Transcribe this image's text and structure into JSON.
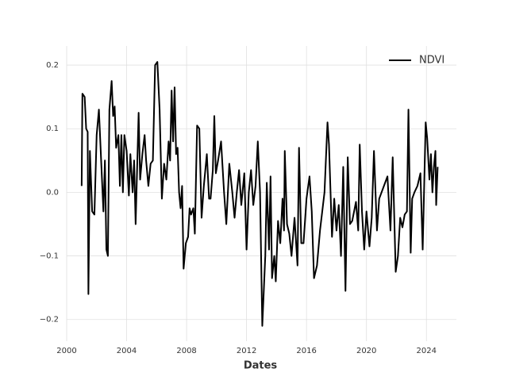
{
  "chart_data": {
    "type": "line",
    "x_label": "Dates",
    "xlim": [
      2000,
      2026
    ],
    "xticks": [
      2000,
      2004,
      2008,
      2012,
      2016,
      2020,
      2024
    ],
    "ylim": [
      -0.234,
      0.23
    ],
    "yticks": [
      {
        "value": -0.2,
        "label": "−0.2"
      },
      {
        "value": -0.1,
        "label": "−0.1"
      },
      {
        "value": 0,
        "label": "0.0"
      },
      0.1,
      0.2
    ],
    "grid": true,
    "legend": "upper right",
    "x": [
      2001.0,
      2001.05,
      2001.2,
      2001.3,
      2001.4,
      2001.45,
      2001.55,
      2001.7,
      2001.85,
      2002.0,
      2002.15,
      2002.3,
      2002.45,
      2002.55,
      2002.65,
      2002.75,
      2002.85,
      2003.0,
      2003.1,
      2003.2,
      2003.3,
      2003.45,
      2003.55,
      2003.65,
      2003.75,
      2003.85,
      2004.0,
      2004.15,
      2004.25,
      2004.4,
      2004.5,
      2004.6,
      2004.8,
      2004.9,
      2005.05,
      2005.2,
      2005.3,
      2005.45,
      2005.6,
      2005.75,
      2005.9,
      2006.05,
      2006.2,
      2006.35,
      2006.5,
      2006.65,
      2006.8,
      2006.9,
      2007.0,
      2007.1,
      2007.2,
      2007.3,
      2007.4,
      2007.5,
      2007.6,
      2007.7,
      2007.8,
      2007.95,
      2008.1,
      2008.2,
      2008.3,
      2008.45,
      2008.55,
      2008.7,
      2008.85,
      2009.0,
      2009.15,
      2009.35,
      2009.5,
      2009.6,
      2009.75,
      2009.85,
      2009.95,
      2010.1,
      2010.3,
      2010.5,
      2010.65,
      2010.85,
      2011.05,
      2011.2,
      2011.35,
      2011.5,
      2011.65,
      2011.85,
      2012.0,
      2012.15,
      2012.3,
      2012.45,
      2012.6,
      2012.75,
      2012.9,
      2013.05,
      2013.25,
      2013.35,
      2013.5,
      2013.6,
      2013.7,
      2013.85,
      2013.95,
      2014.1,
      2014.25,
      2014.4,
      2014.5,
      2014.55,
      2014.7,
      2014.85,
      2015.0,
      2015.2,
      2015.4,
      2015.5,
      2015.65,
      2015.8,
      2016.0,
      2016.2,
      2016.35,
      2016.5,
      2016.7,
      2016.9,
      2017.2,
      2017.4,
      2017.5,
      2017.7,
      2017.85,
      2018.0,
      2018.15,
      2018.3,
      2018.45,
      2018.6,
      2018.75,
      2018.9,
      2019.05,
      2019.3,
      2019.45,
      2019.55,
      2019.7,
      2019.85,
      2020.0,
      2020.2,
      2020.35,
      2020.5,
      2020.7,
      2020.85,
      2021.4,
      2021.6,
      2021.75,
      2021.95,
      2022.1,
      2022.25,
      2022.4,
      2022.55,
      2022.7,
      2022.8,
      2022.95,
      2023.05,
      2023.2,
      2023.4,
      2023.6,
      2023.75,
      2023.95,
      2024.05,
      2024.2,
      2024.3,
      2024.4,
      2024.5,
      2024.6,
      2024.65,
      2024.75
    ],
    "series": [
      {
        "name": "NDVI",
        "color": "#000000",
        "values": [
          0.01,
          0.155,
          0.15,
          0.1,
          0.095,
          -0.16,
          0.065,
          -0.03,
          -0.035,
          0.09,
          0.13,
          0.05,
          -0.03,
          0.05,
          -0.09,
          -0.1,
          0.13,
          0.175,
          0.12,
          0.135,
          0.07,
          0.09,
          0.01,
          0.09,
          0.0,
          0.09,
          0.065,
          -0.005,
          0.06,
          0.0,
          0.05,
          -0.05,
          0.125,
          0.02,
          0.06,
          0.09,
          0.05,
          0.01,
          0.045,
          0.05,
          0.2,
          0.205,
          0.13,
          -0.01,
          0.045,
          0.02,
          0.08,
          0.05,
          0.16,
          0.08,
          0.165,
          0.06,
          0.07,
          0.0,
          -0.025,
          0.01,
          -0.12,
          -0.08,
          -0.07,
          -0.025,
          -0.035,
          -0.025,
          -0.065,
          0.105,
          0.1,
          -0.04,
          0.01,
          0.06,
          -0.01,
          -0.01,
          0.035,
          0.12,
          0.03,
          0.05,
          0.08,
          0.0,
          -0.05,
          0.045,
          0.0,
          -0.04,
          0.0,
          0.035,
          -0.02,
          0.03,
          -0.09,
          0.0,
          0.035,
          -0.02,
          0.01,
          0.08,
          0.0,
          -0.21,
          -0.1,
          0.015,
          -0.09,
          0.025,
          -0.135,
          -0.1,
          -0.14,
          -0.045,
          -0.08,
          -0.01,
          -0.06,
          0.065,
          -0.05,
          -0.065,
          -0.1,
          -0.04,
          -0.115,
          0.07,
          -0.08,
          -0.08,
          -0.01,
          0.025,
          -0.03,
          -0.135,
          -0.115,
          -0.06,
          0.0,
          0.11,
          0.075,
          -0.07,
          -0.01,
          -0.06,
          -0.02,
          -0.1,
          0.04,
          -0.155,
          0.055,
          -0.05,
          -0.045,
          -0.015,
          -0.06,
          0.075,
          -0.03,
          -0.09,
          -0.03,
          -0.085,
          -0.04,
          0.065,
          -0.06,
          -0.01,
          0.025,
          -0.06,
          0.055,
          -0.125,
          -0.1,
          -0.04,
          -0.055,
          -0.035,
          -0.03,
          0.13,
          -0.095,
          -0.01,
          0.0,
          0.01,
          0.03,
          -0.09,
          0.11,
          0.085,
          0.02,
          0.06,
          0.0,
          0.04,
          0.065,
          -0.02,
          0.04
        ]
      }
    ]
  }
}
